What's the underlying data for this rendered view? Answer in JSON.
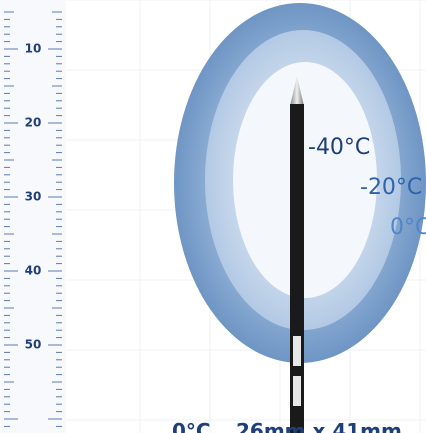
{
  "ruler": {
    "labels": [
      "10",
      "20",
      "30",
      "40",
      "50"
    ]
  },
  "zones": [
    {
      "label": "-40°C"
    },
    {
      "label": "-20°C"
    },
    {
      "label": "0°C"
    }
  ],
  "footer": [
    "0°C",
    "26mm x 41mm"
  ]
}
